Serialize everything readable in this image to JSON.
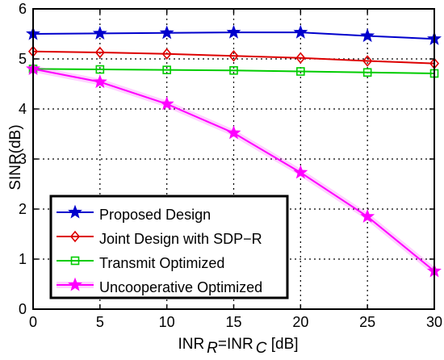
{
  "chart_data": {
    "type": "line",
    "xlabel_parts": [
      "INR",
      "R",
      "=INR",
      "C",
      " [dB]"
    ],
    "ylabel": "SINR(dB)",
    "x": [
      0,
      5,
      10,
      15,
      20,
      25,
      30
    ],
    "xlim": [
      0,
      30
    ],
    "ylim": [
      0,
      6
    ],
    "xticks": [
      "0",
      "5",
      "10",
      "15",
      "20",
      "25",
      "30"
    ],
    "yticks": [
      "0",
      "1",
      "2",
      "3",
      "4",
      "5",
      "6"
    ],
    "grid": true,
    "legend_position": "bottom-left",
    "series": [
      {
        "name": "Proposed Design",
        "values": [
          5.5,
          5.51,
          5.52,
          5.53,
          5.53,
          5.46,
          5.4
        ],
        "color": "#0000cc",
        "marker": "star"
      },
      {
        "name": "Joint Design with SDP−R",
        "values": [
          5.15,
          5.13,
          5.1,
          5.06,
          5.02,
          4.96,
          4.91
        ],
        "color": "#dd0000",
        "marker": "diamond"
      },
      {
        "name": "Transmit Optimized",
        "values": [
          4.8,
          4.79,
          4.78,
          4.77,
          4.75,
          4.73,
          4.71
        ],
        "color": "#00cc00",
        "marker": "square"
      },
      {
        "name": "Uncooperative Optimized",
        "values": [
          4.8,
          4.54,
          4.1,
          3.52,
          2.73,
          1.85,
          0.76
        ],
        "color": "#ff00ff",
        "marker": "star"
      }
    ]
  }
}
